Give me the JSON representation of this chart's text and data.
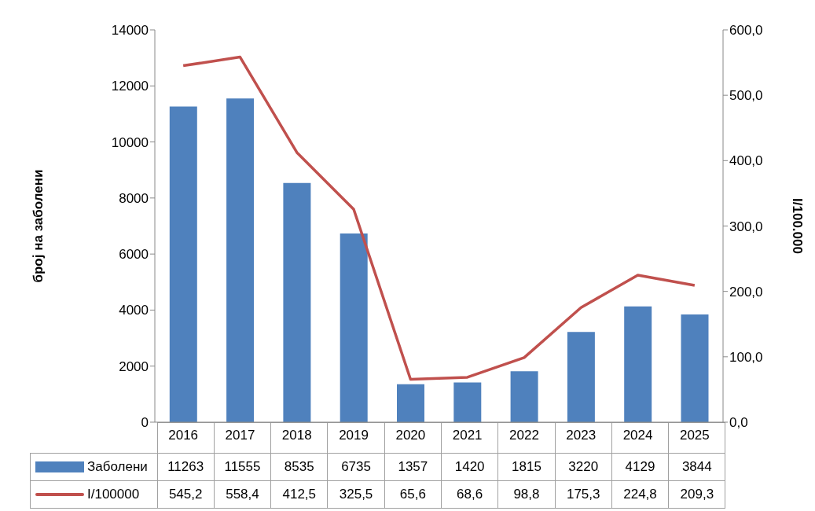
{
  "chart_data": {
    "type": "bar",
    "categories": [
      "2016",
      "2017",
      "2018",
      "2019",
      "2020",
      "2021",
      "2022",
      "2023",
      "2024",
      "2025"
    ],
    "ylabel": "број на заболени",
    "y2label": "I/100.000",
    "ylim": [
      0,
      14000
    ],
    "yticks": [
      0,
      2000,
      4000,
      6000,
      8000,
      10000,
      12000,
      14000
    ],
    "y2lim": [
      0,
      600
    ],
    "y2ticks": [
      {
        "value": 0,
        "label": "0,0"
      },
      {
        "value": 100,
        "label": "100,0"
      },
      {
        "value": 200,
        "label": "200,0"
      },
      {
        "value": 300,
        "label": "300,0"
      },
      {
        "value": 400,
        "label": "400,0"
      },
      {
        "value": 500,
        "label": "500,0"
      },
      {
        "value": 600,
        "label": "600,0"
      }
    ],
    "legend": "bottom",
    "series": [
      {
        "name": "Заболени",
        "color": "#4f81bd",
        "values": [
          11263,
          11555,
          8535,
          6735,
          1357,
          1420,
          1815,
          3220,
          4129,
          3844
        ],
        "value_labels": [
          "11263",
          "11555",
          "8535",
          "6735",
          "1357",
          "1420",
          "1815",
          "3220",
          "4129",
          "3844"
        ]
      },
      {
        "name": "I/100000",
        "type": "line",
        "axis": "y2",
        "color": "#c0504d",
        "marker": "none",
        "line_style": "solid",
        "values": [
          545.2,
          558.4,
          412.5,
          325.5,
          65.6,
          68.6,
          98.8,
          175.3,
          224.8,
          209.3
        ],
        "value_labels": [
          "545,2",
          "558,4",
          "412,5",
          "325,5",
          "65,6",
          "68,6",
          "98,8",
          "175,3",
          "224,8",
          "209,3"
        ]
      }
    ]
  }
}
